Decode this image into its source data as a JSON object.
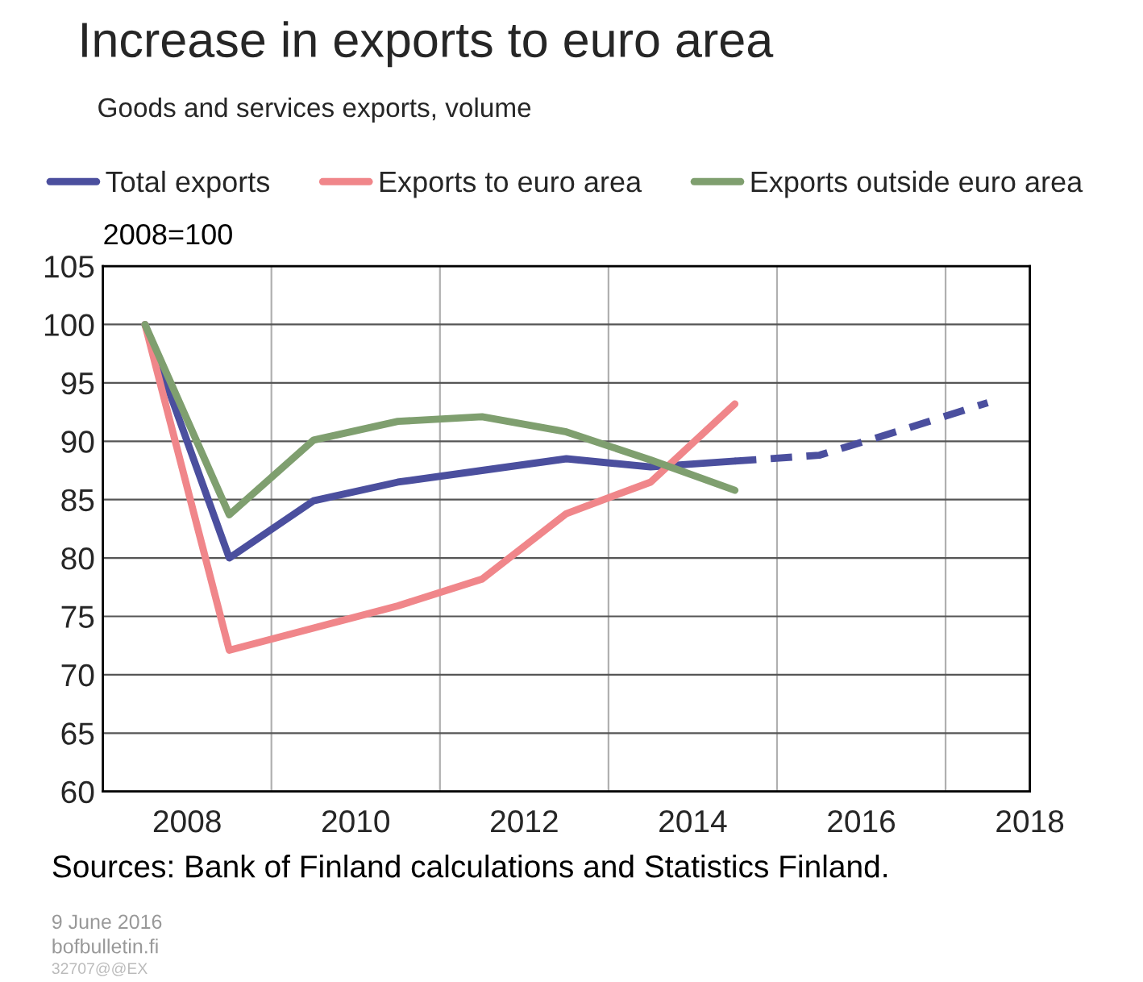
{
  "chart_data": {
    "type": "line",
    "title": "Increase in exports to euro area",
    "subtitle": "Goods and services exports, volume",
    "annotations": [
      "2008=100",
      "Sources: Bank of Finland calculations and Statistics Finland.",
      "9 June 2016",
      "bofbulletin.fi",
      "32707@@EX"
    ],
    "series": [
      {
        "name": "Total exports",
        "color": "#4b4f9e",
        "x": [
          2007.5,
          2008.5,
          2009.5,
          2010.5,
          2011.5,
          2012.5,
          2013.5,
          2014.5
        ],
        "values": [
          100,
          80,
          84.9,
          86.5,
          87.5,
          88.5,
          87.8,
          88.3
        ],
        "line_style": "solid"
      },
      {
        "name": "Exports to euro area",
        "color": "#f0868a",
        "x": [
          2007.5,
          2008.5,
          2009.5,
          2010.5,
          2011.5,
          2012.5,
          2013.5,
          2014.5
        ],
        "values": [
          100,
          72.1,
          74.0,
          75.9,
          78.2,
          83.8,
          86.5,
          93.2
        ],
        "line_style": "solid"
      },
      {
        "name": "Exports outside euro area",
        "color": "#7f9f6f",
        "x": [
          2007.5,
          2008.5,
          2009.5,
          2010.5,
          2011.5,
          2012.5,
          2013.5,
          2014.5
        ],
        "values": [
          100,
          83.7,
          90.1,
          91.7,
          92.1,
          90.8,
          88.4,
          85.8
        ],
        "line_style": "solid"
      },
      {
        "color": "#4b4f9e",
        "x": [
          2014.5,
          2015.5,
          2016.5,
          2017.5
        ],
        "values": [
          88.3,
          88.8,
          91.0,
          93.3
        ],
        "line_style": "dashed"
      }
    ],
    "xlim": [
      2007,
      2018
    ],
    "xticks": [
      2008,
      {
        "value": 2009,
        "label": null
      },
      2010,
      {
        "value": 2011,
        "label": null
      },
      2012,
      {
        "value": 2013,
        "label": null
      },
      2014,
      {
        "value": 2015,
        "label": null
      },
      2016,
      {
        "value": 2017,
        "label": null
      },
      2018
    ],
    "ylim": [
      60,
      105
    ],
    "yticks": [
      60,
      65,
      70,
      75,
      80,
      85,
      90,
      95,
      100,
      105
    ],
    "grid": true,
    "legend": "top"
  }
}
